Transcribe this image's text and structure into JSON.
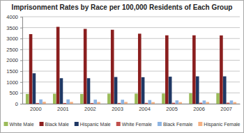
{
  "chart_data": {
    "type": "bar",
    "title": "Imprisonment Rates by Race per 100,000 Residents of Each Group",
    "categories": [
      "2000",
      "2001",
      "2002",
      "2003",
      "2004",
      "2005",
      "2006",
      "2007"
    ],
    "series": [
      {
        "name": "White Male",
        "color": "#9bbb59",
        "values": [
          450,
          460,
          450,
          465,
          465,
          470,
          480,
          480
        ]
      },
      {
        "name": "Black Male",
        "color": "#8b1f1f",
        "values": [
          3200,
          3535,
          3440,
          3400,
          3220,
          3145,
          3145,
          3140
        ]
      },
      {
        "name": "Hispanic Male",
        "color": "#1f3864",
        "values": [
          1400,
          1175,
          1175,
          1230,
          1220,
          1245,
          1260,
          1260
        ]
      },
      {
        "name": "White Female",
        "color": "#c0504d",
        "values": [
          35,
          35,
          35,
          38,
          40,
          45,
          48,
          50
        ]
      },
      {
        "name": "Black Female",
        "color": "#8db4e2",
        "values": [
          200,
          200,
          190,
          185,
          170,
          155,
          150,
          150
        ]
      },
      {
        "name": "Hispanic Female",
        "color": "#f5b183",
        "values": [
          90,
          85,
          80,
          84,
          75,
          75,
          80,
          76
        ]
      }
    ],
    "ylim": [
      0,
      4000
    ],
    "yticks": [
      0,
      500,
      1000,
      1500,
      2000,
      2500,
      3000,
      3500,
      4000
    ],
    "grid": true,
    "legend": "bottom"
  }
}
